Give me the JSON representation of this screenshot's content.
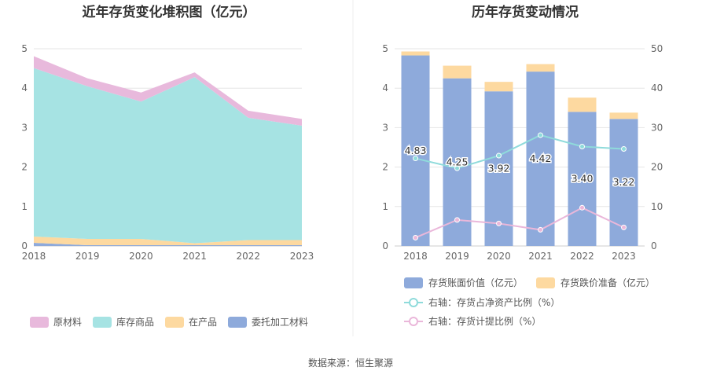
{
  "chart_data": [
    {
      "type": "area",
      "title": "近年存货变化堆积图（亿元）",
      "categories": [
        "2018",
        "2019",
        "2020",
        "2021",
        "2022",
        "2023"
      ],
      "ylim": [
        0,
        5
      ],
      "yticks": [
        "0",
        "1",
        "2",
        "3",
        "4",
        "5"
      ],
      "stacked": true,
      "series": [
        {
          "name": "委托加工材料",
          "color": "#8eaadb",
          "values": [
            0.08,
            0.02,
            0.02,
            0.02,
            0.02,
            0.02
          ]
        },
        {
          "name": "在产品",
          "color": "#fdd9a0",
          "values": [
            0.16,
            0.16,
            0.16,
            0.05,
            0.13,
            0.13
          ]
        },
        {
          "name": "库存商品",
          "color": "#a6e3e3",
          "values": [
            4.27,
            3.87,
            3.48,
            4.21,
            3.1,
            2.9
          ]
        },
        {
          "name": "原材料",
          "color": "#e8b9dc",
          "values": [
            0.3,
            0.2,
            0.23,
            0.12,
            0.18,
            0.17
          ]
        }
      ]
    },
    {
      "type": "bar",
      "title": "历年存货变动情况",
      "categories": [
        "2018",
        "2019",
        "2020",
        "2021",
        "2022",
        "2023"
      ],
      "ylim": [
        0,
        5
      ],
      "y2lim": [
        0,
        50
      ],
      "yticks": [
        "0",
        "1",
        "2",
        "3",
        "4",
        "5"
      ],
      "y2ticks": [
        "0",
        "10",
        "20",
        "30",
        "40",
        "50"
      ],
      "series": [
        {
          "name": "存货账面价值（亿元）",
          "type": "bar",
          "color": "#8eaadb",
          "values": [
            4.83,
            4.25,
            3.92,
            4.42,
            3.4,
            3.22
          ],
          "labels": [
            "4.83",
            "4.25",
            "3.92",
            "4.42",
            "3.40",
            "3.22"
          ]
        },
        {
          "name": "存货跌价准备（亿元）",
          "type": "bar",
          "color": "#fdd9a0",
          "values": [
            0.1,
            0.32,
            0.24,
            0.19,
            0.36,
            0.16
          ]
        },
        {
          "name": "右轴：存货占净资产比例（%）",
          "type": "line",
          "axis": "right",
          "color": "#8fdbdb",
          "values": [
            22.2,
            19.7,
            22.9,
            28.1,
            25.2,
            24.6
          ]
        },
        {
          "name": "右轴：存货计提比例（%）",
          "type": "line",
          "axis": "right",
          "color": "#eab7da",
          "values": [
            2.1,
            6.6,
            5.7,
            4.1,
            9.7,
            4.7
          ]
        }
      ]
    }
  ],
  "source": "数据来源：恒生聚源",
  "colors": {
    "axis": "#cccccc",
    "grid": "#e6e6e6",
    "divider": "#eeeeee"
  }
}
